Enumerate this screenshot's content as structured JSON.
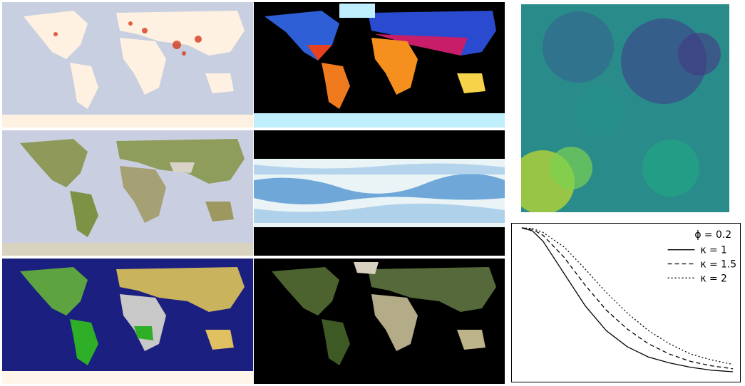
{
  "panels": {
    "population": {
      "icon": "population-density-map-icon",
      "ocean": "#c8cfe0",
      "land": "#fff1e1",
      "accent": "#d83a1b"
    },
    "temperature": {
      "icon": "temperature-map-icon",
      "background": "#000000"
    },
    "relief": {
      "icon": "shaded-relief-map-icon",
      "ocean": "#c9cfe0",
      "land": "#8f9a5a"
    },
    "cloud": {
      "icon": "cloud-cover-map-icon",
      "background": "#000000"
    },
    "landcover": {
      "icon": "land-cover-map-icon",
      "ocean": "#1a1f80"
    },
    "vegetation": {
      "icon": "vegetation-map-icon",
      "background": "#000000"
    },
    "random_field": {
      "icon": "random-field-image-icon"
    }
  },
  "chart_data": {
    "type": "line",
    "title": "",
    "xlabel": "",
    "ylabel": "",
    "xlim": [
      0,
      1
    ],
    "ylim": [
      0,
      1
    ],
    "series": [
      {
        "name": "κ = 1",
        "style": "solid",
        "x": [
          0,
          0.05,
          0.1,
          0.2,
          0.3,
          0.4,
          0.5,
          0.6,
          0.7,
          0.8,
          0.9,
          1.0
        ],
        "values": [
          1.0,
          0.98,
          0.91,
          0.69,
          0.47,
          0.3,
          0.19,
          0.12,
          0.08,
          0.05,
          0.03,
          0.02
        ]
      },
      {
        "name": "κ = 1.5",
        "style": "dashed",
        "x": [
          0,
          0.05,
          0.1,
          0.2,
          0.3,
          0.4,
          0.5,
          0.6,
          0.7,
          0.8,
          0.9,
          1.0
        ],
        "values": [
          1.0,
          0.99,
          0.95,
          0.8,
          0.61,
          0.44,
          0.31,
          0.21,
          0.14,
          0.09,
          0.06,
          0.04
        ]
      },
      {
        "name": "κ = 2",
        "style": "dotted",
        "x": [
          0,
          0.05,
          0.1,
          0.2,
          0.3,
          0.4,
          0.5,
          0.6,
          0.7,
          0.8,
          0.9,
          1.0
        ],
        "values": [
          1.0,
          0.995,
          0.97,
          0.87,
          0.72,
          0.56,
          0.42,
          0.3,
          0.21,
          0.14,
          0.1,
          0.07
        ]
      }
    ],
    "legend": {
      "header": "ϕ = 0.2",
      "position": "top-right"
    },
    "grid": false
  }
}
